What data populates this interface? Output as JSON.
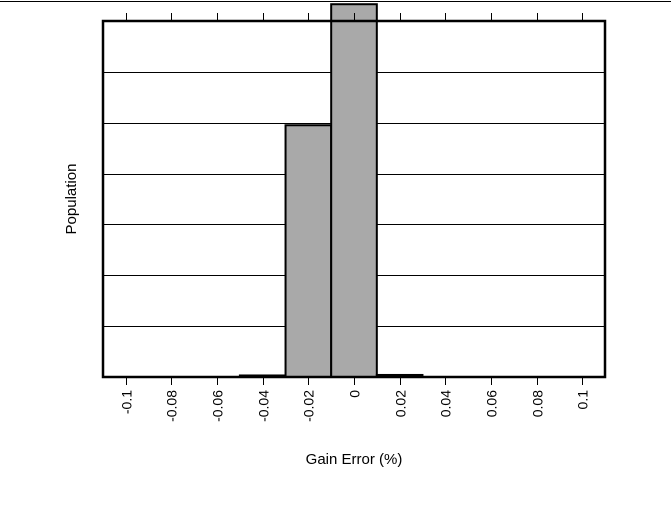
{
  "chart_data": {
    "type": "bar",
    "xlabel": "Gain Error (%)",
    "ylabel": "Population",
    "x_ticks": [
      -0.1,
      -0.08,
      -0.06,
      -0.04,
      -0.02,
      0,
      0.02,
      0.04,
      0.06,
      0.08,
      0.1
    ],
    "x_tick_labels": [
      "-0.1",
      "-0.08",
      "-0.06",
      "-0.04",
      "-0.02",
      "0",
      "0.02",
      "0.04",
      "0.06",
      "0.08",
      "0.1"
    ],
    "xlim": [
      -0.11,
      0.11
    ],
    "ylim": [
      0,
      7
    ],
    "grid": true,
    "bar_width": 0.02,
    "bars": [
      {
        "x": -0.04,
        "value": 0.03
      },
      {
        "x": -0.02,
        "value": 4.95
      },
      {
        "x": 0,
        "value": 7.33
      },
      {
        "x": 0.02,
        "value": 0.04
      }
    ],
    "colors": {
      "bar_fill": "#a9a9a9",
      "bar_stroke": "#000000",
      "grid": "#000000"
    }
  }
}
